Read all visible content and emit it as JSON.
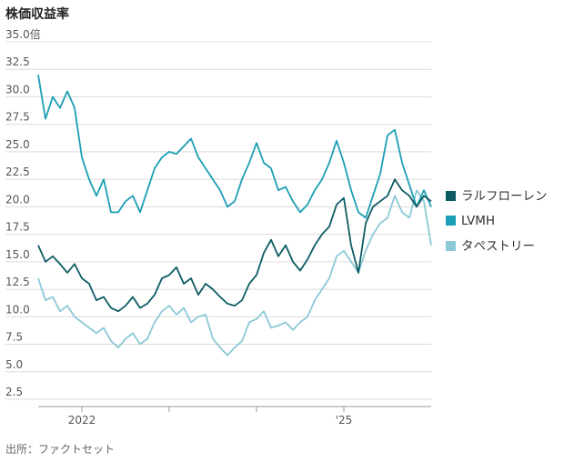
{
  "chart_data": {
    "type": "line",
    "title": "株価収益率",
    "source": "出所：ファクトセット",
    "xlabel": "",
    "ylabel": "",
    "x_range": [
      "2021-07",
      "2026-01"
    ],
    "ylim": [
      2.5,
      35.0
    ],
    "yticks": [
      "2.5",
      "5.0",
      "7.5",
      "10.0",
      "12.5",
      "15.0",
      "17.5",
      "20.0",
      "22.5",
      "25.0",
      "27.5",
      "30.0",
      "32.5",
      "35.0倍"
    ],
    "xticks": [
      {
        "x": "2022-01",
        "label": "2022"
      },
      {
        "x": "2023-01",
        "label": ""
      },
      {
        "x": "2024-01",
        "label": ""
      },
      {
        "x": "2025-01",
        "label": "'25"
      }
    ],
    "grid": true,
    "legend_position": "right",
    "series": [
      {
        "name": "ラルフローレン",
        "color": "#0d5c63",
        "points": [
          [
            "2021-07",
            16.5
          ],
          [
            "2021-08",
            15.0
          ],
          [
            "2021-09",
            15.5
          ],
          [
            "2021-10",
            14.8
          ],
          [
            "2021-11",
            14.0
          ],
          [
            "2021-12",
            14.8
          ],
          [
            "2022-01",
            13.5
          ],
          [
            "2022-02",
            13.0
          ],
          [
            "2022-03",
            11.5
          ],
          [
            "2022-04",
            11.8
          ],
          [
            "2022-05",
            10.8
          ],
          [
            "2022-06",
            10.5
          ],
          [
            "2022-07",
            11.0
          ],
          [
            "2022-08",
            11.8
          ],
          [
            "2022-09",
            10.8
          ],
          [
            "2022-10",
            11.2
          ],
          [
            "2022-11",
            12.0
          ],
          [
            "2022-12",
            13.5
          ],
          [
            "2023-01",
            13.8
          ],
          [
            "2023-02",
            14.5
          ],
          [
            "2023-03",
            13.0
          ],
          [
            "2023-04",
            13.5
          ],
          [
            "2023-05",
            12.0
          ],
          [
            "2023-06",
            13.0
          ],
          [
            "2023-07",
            12.5
          ],
          [
            "2023-08",
            11.8
          ],
          [
            "2023-09",
            11.2
          ],
          [
            "2023-10",
            11.0
          ],
          [
            "2023-11",
            11.5
          ],
          [
            "2023-12",
            13.0
          ],
          [
            "2024-01",
            13.8
          ],
          [
            "2024-02",
            15.8
          ],
          [
            "2024-03",
            17.0
          ],
          [
            "2024-04",
            15.5
          ],
          [
            "2024-05",
            16.5
          ],
          [
            "2024-06",
            15.0
          ],
          [
            "2024-07",
            14.2
          ],
          [
            "2024-08",
            15.2
          ],
          [
            "2024-09",
            16.5
          ],
          [
            "2024-10",
            17.5
          ],
          [
            "2024-11",
            18.2
          ],
          [
            "2024-12",
            20.2
          ],
          [
            "2025-01",
            20.8
          ],
          [
            "2025-02",
            16.5
          ],
          [
            "2025-03",
            14.0
          ],
          [
            "2025-04",
            18.5
          ],
          [
            "2025-05",
            20.0
          ],
          [
            "2025-06",
            20.5
          ],
          [
            "2025-07",
            21.0
          ],
          [
            "2025-08",
            22.5
          ],
          [
            "2025-09",
            21.5
          ],
          [
            "2025-10",
            21.0
          ],
          [
            "2025-11",
            20.0
          ],
          [
            "2025-12",
            21.0
          ],
          [
            "2026-01",
            20.5
          ]
        ]
      },
      {
        "name": "LVMH",
        "color": "#1b9fb4",
        "points": [
          [
            "2021-07",
            32.0
          ],
          [
            "2021-08",
            28.0
          ],
          [
            "2021-09",
            30.0
          ],
          [
            "2021-10",
            29.0
          ],
          [
            "2021-11",
            30.5
          ],
          [
            "2021-12",
            29.0
          ],
          [
            "2022-01",
            24.5
          ],
          [
            "2022-02",
            22.5
          ],
          [
            "2022-03",
            21.0
          ],
          [
            "2022-04",
            22.5
          ],
          [
            "2022-05",
            19.5
          ],
          [
            "2022-06",
            19.5
          ],
          [
            "2022-07",
            20.5
          ],
          [
            "2022-08",
            21.0
          ],
          [
            "2022-09",
            19.5
          ],
          [
            "2022-10",
            21.5
          ],
          [
            "2022-11",
            23.5
          ],
          [
            "2022-12",
            24.5
          ],
          [
            "2023-01",
            25.0
          ],
          [
            "2023-02",
            24.8
          ],
          [
            "2023-03",
            25.5
          ],
          [
            "2023-04",
            26.2
          ],
          [
            "2023-05",
            24.5
          ],
          [
            "2023-06",
            23.5
          ],
          [
            "2023-07",
            22.5
          ],
          [
            "2023-08",
            21.5
          ],
          [
            "2023-09",
            20.0
          ],
          [
            "2023-10",
            20.5
          ],
          [
            "2023-11",
            22.5
          ],
          [
            "2023-12",
            24.0
          ],
          [
            "2024-01",
            25.8
          ],
          [
            "2024-02",
            24.0
          ],
          [
            "2024-03",
            23.5
          ],
          [
            "2024-04",
            21.5
          ],
          [
            "2024-05",
            21.8
          ],
          [
            "2024-06",
            20.5
          ],
          [
            "2024-07",
            19.5
          ],
          [
            "2024-08",
            20.2
          ],
          [
            "2024-09",
            21.5
          ],
          [
            "2024-10",
            22.5
          ],
          [
            "2024-11",
            24.0
          ],
          [
            "2024-12",
            26.0
          ],
          [
            "2025-01",
            24.0
          ],
          [
            "2025-02",
            21.5
          ],
          [
            "2025-03",
            19.5
          ],
          [
            "2025-04",
            19.0
          ],
          [
            "2025-05",
            21.0
          ],
          [
            "2025-06",
            23.0
          ],
          [
            "2025-07",
            26.5
          ],
          [
            "2025-08",
            27.0
          ],
          [
            "2025-09",
            24.0
          ],
          [
            "2025-10",
            22.0
          ],
          [
            "2025-11",
            20.0
          ],
          [
            "2025-12",
            21.5
          ],
          [
            "2026-01",
            20.0
          ]
        ]
      },
      {
        "name": "タペストリー",
        "color": "#8cc9d6",
        "points": [
          [
            "2021-07",
            13.5
          ],
          [
            "2021-08",
            11.5
          ],
          [
            "2021-09",
            11.8
          ],
          [
            "2021-10",
            10.5
          ],
          [
            "2021-11",
            11.0
          ],
          [
            "2021-12",
            10.0
          ],
          [
            "2022-01",
            9.5
          ],
          [
            "2022-02",
            9.0
          ],
          [
            "2022-03",
            8.5
          ],
          [
            "2022-04",
            9.0
          ],
          [
            "2022-05",
            7.8
          ],
          [
            "2022-06",
            7.2
          ],
          [
            "2022-07",
            8.0
          ],
          [
            "2022-08",
            8.5
          ],
          [
            "2022-09",
            7.5
          ],
          [
            "2022-10",
            8.0
          ],
          [
            "2022-11",
            9.5
          ],
          [
            "2022-12",
            10.5
          ],
          [
            "2023-01",
            11.0
          ],
          [
            "2023-02",
            10.2
          ],
          [
            "2023-03",
            10.8
          ],
          [
            "2023-04",
            9.5
          ],
          [
            "2023-05",
            10.0
          ],
          [
            "2023-06",
            10.2
          ],
          [
            "2023-07",
            8.0
          ],
          [
            "2023-08",
            7.2
          ],
          [
            "2023-09",
            6.5
          ],
          [
            "2023-10",
            7.2
          ],
          [
            "2023-11",
            7.8
          ],
          [
            "2023-12",
            9.5
          ],
          [
            "2024-01",
            9.8
          ],
          [
            "2024-02",
            10.5
          ],
          [
            "2024-03",
            9.0
          ],
          [
            "2024-04",
            9.2
          ],
          [
            "2024-05",
            9.5
          ],
          [
            "2024-06",
            8.8
          ],
          [
            "2024-07",
            9.5
          ],
          [
            "2024-08",
            10.0
          ],
          [
            "2024-09",
            11.5
          ],
          [
            "2024-10",
            12.5
          ],
          [
            "2024-11",
            13.5
          ],
          [
            "2024-12",
            15.5
          ],
          [
            "2025-01",
            16.0
          ],
          [
            "2025-02",
            15.0
          ],
          [
            "2025-03",
            14.0
          ],
          [
            "2025-04",
            16.0
          ],
          [
            "2025-05",
            17.5
          ],
          [
            "2025-06",
            18.5
          ],
          [
            "2025-07",
            19.0
          ],
          [
            "2025-08",
            21.0
          ],
          [
            "2025-09",
            19.5
          ],
          [
            "2025-10",
            19.0
          ],
          [
            "2025-11",
            21.5
          ],
          [
            "2025-12",
            20.5
          ],
          [
            "2026-01",
            16.5
          ]
        ]
      }
    ]
  }
}
